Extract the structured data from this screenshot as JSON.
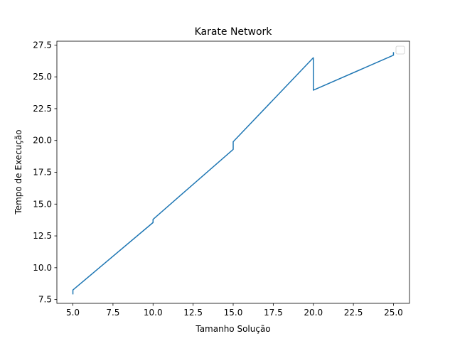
{
  "chart_data": {
    "type": "line",
    "title": "Karate Network",
    "xlabel": "Tamanho Solução",
    "ylabel": "Tempo de Execução",
    "xlim": [
      4.0,
      26.0
    ],
    "ylim": [
      7.2,
      27.8
    ],
    "xticks": [
      5.0,
      7.5,
      10.0,
      12.5,
      15.0,
      17.5,
      20.0,
      22.5,
      25.0
    ],
    "xtick_labels": [
      "5.0",
      "7.5",
      "10.0",
      "12.5",
      "15.0",
      "17.5",
      "20.0",
      "22.5",
      "25.0"
    ],
    "yticks": [
      7.5,
      10.0,
      12.5,
      15.0,
      17.5,
      20.0,
      22.5,
      25.0,
      27.5
    ],
    "ytick_labels": [
      "7.5",
      "10.0",
      "12.5",
      "15.0",
      "17.5",
      "20.0",
      "22.5",
      "25.0",
      "27.5"
    ],
    "grid": false,
    "legend": "top-right (empty)",
    "series": [
      {
        "color": "#1f77b4",
        "x": [
          5.0,
          5.0,
          10.0,
          10.0,
          15.0,
          15.0,
          20.0,
          20.0,
          25.0,
          25.0
        ],
        "y": [
          7.95,
          8.25,
          13.55,
          13.8,
          19.3,
          19.9,
          26.5,
          23.95,
          26.7,
          26.9
        ]
      }
    ]
  }
}
